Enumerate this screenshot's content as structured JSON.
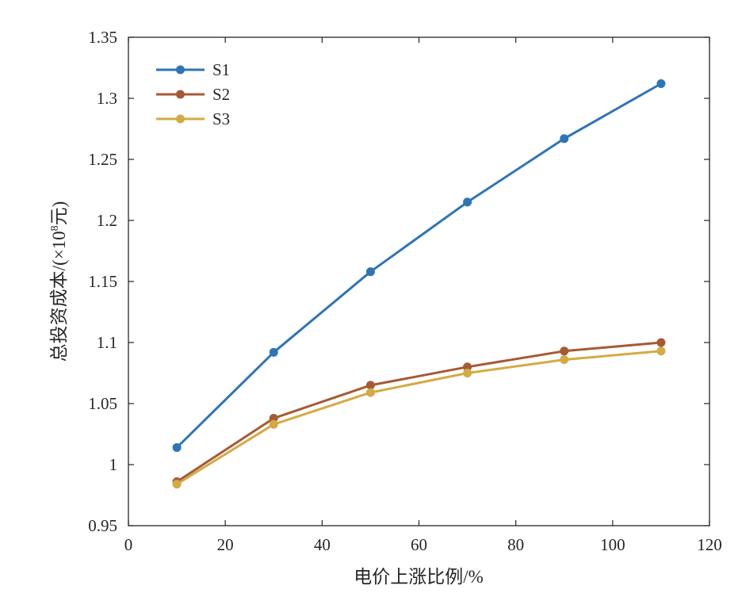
{
  "chart_data": {
    "type": "line",
    "xlabel": "电价上涨比例/%",
    "ylabel_prefix": "总投资成本/(×10",
    "ylabel_sup": "8",
    "ylabel_suffix": "元)",
    "xlim": [
      0,
      120
    ],
    "ylim": [
      0.95,
      1.35
    ],
    "x_ticks": [
      0,
      20,
      40,
      60,
      80,
      100,
      120
    ],
    "x_tick_labels": [
      "0",
      "20",
      "40",
      "60",
      "80",
      "100",
      "120"
    ],
    "y_ticks": [
      0.95,
      1.0,
      1.05,
      1.1,
      1.15,
      1.2,
      1.25,
      1.3,
      1.35
    ],
    "y_tick_labels": [
      "0.95",
      "1",
      "1.05",
      "1.1",
      "1.15",
      "1.2",
      "1.25",
      "1.3",
      "1.35"
    ],
    "grid": false,
    "legend_position": "top-left",
    "x": [
      10,
      30,
      50,
      70,
      90,
      110
    ],
    "series": [
      {
        "name": "S1",
        "color": "#2e75b6",
        "values": [
          1.014,
          1.092,
          1.158,
          1.215,
          1.267,
          1.312
        ]
      },
      {
        "name": "S2",
        "color": "#a65a33",
        "values": [
          0.986,
          1.038,
          1.065,
          1.08,
          1.093,
          1.1
        ]
      },
      {
        "name": "S3",
        "color": "#d4aa44",
        "values": [
          0.984,
          1.033,
          1.059,
          1.075,
          1.086,
          1.093
        ]
      }
    ]
  }
}
